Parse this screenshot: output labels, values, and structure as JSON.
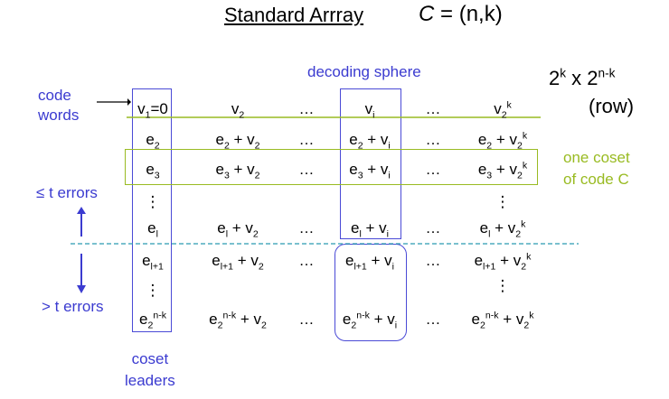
{
  "title": "Standard Arrray",
  "code_title": {
    "c": "C",
    "rest": " = (n,k)"
  },
  "decoding_sphere": "decoding sphere",
  "size_label": {
    "base1": "2",
    "exp1": "k",
    "times": " x ",
    "base2": "2",
    "exp2": "n-k",
    "row": "(row)"
  },
  "code_words": [
    "code",
    "words"
  ],
  "coset_label": [
    "one coset",
    "of code C"
  ],
  "le_t_errors": "t errors",
  "le_symbol": "≤",
  "gt_t_errors": "> t errors",
  "coset_leaders": [
    "coset",
    "leaders"
  ],
  "ellipsis": "…",
  "vdots": "⋮",
  "rows": [
    {
      "c0": {
        "b": "v",
        "s": "1",
        "t": "=0"
      },
      "c1": {
        "b": "v",
        "s": "2"
      },
      "c3": {
        "b": "v",
        "s": "i"
      },
      "c5": {
        "b": "v",
        "s": "2",
        "p": "k"
      }
    },
    {
      "lead": {
        "b": "e",
        "s": "2"
      },
      "plus": " + "
    },
    {
      "lead": {
        "b": "e",
        "s": "3"
      }
    },
    {
      "lead": {
        "b": "e",
        "s": "l"
      }
    },
    {
      "lead": {
        "b": "e",
        "s": "l+1"
      }
    },
    {
      "lead": {
        "b": "e",
        "s": "2",
        "p": "n-k"
      }
    }
  ],
  "colors": {
    "blue": "#3b3bd0",
    "green": "#99bb22",
    "dashed": "#2a9ab0"
  }
}
